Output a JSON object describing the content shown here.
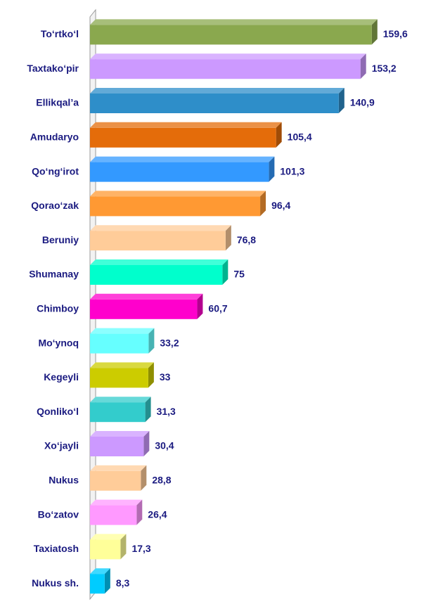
{
  "chart_data": {
    "type": "bar",
    "orientation": "horizontal",
    "categories": [
      "To‘rtko‘l",
      "Taxtako‘pir",
      "Ellikqal’a",
      "Amudaryo",
      "Qo‘ng‘irot",
      "Qorao‘zak",
      "Beruniy",
      "Shumanay",
      "Chimboy",
      "Mo‘ynoq",
      "Kegeyli",
      "Qonliko‘l",
      "Xo‘jayli",
      "Nukus",
      "Bo‘zatov",
      "Taxiatosh",
      "Nukus sh."
    ],
    "values": [
      159.6,
      153.2,
      140.9,
      105.4,
      101.3,
      96.4,
      76.8,
      75,
      60.7,
      33.2,
      33,
      31.3,
      30.4,
      28.8,
      26.4,
      17.3,
      8.3
    ],
    "value_labels": [
      "159,6",
      "153,2",
      "140,9",
      "105,4",
      "101,3",
      "96,4",
      "76,8",
      "75",
      "60,7",
      "33,2",
      "33",
      "31,3",
      "30,4",
      "28,8",
      "26,4",
      "17,3",
      "8,3"
    ],
    "colors": [
      "#8aa84e",
      "#cc99ff",
      "#2e8ec9",
      "#e46c0a",
      "#3399ff",
      "#ff9933",
      "#ffcc99",
      "#00ffcc",
      "#ff00cc",
      "#66ffff",
      "#cccc00",
      "#33cccc",
      "#cc99ff",
      "#ffcc99",
      "#ff99ff",
      "#ffff99",
      "#00ccff"
    ],
    "xlim": [
      0,
      180
    ]
  }
}
